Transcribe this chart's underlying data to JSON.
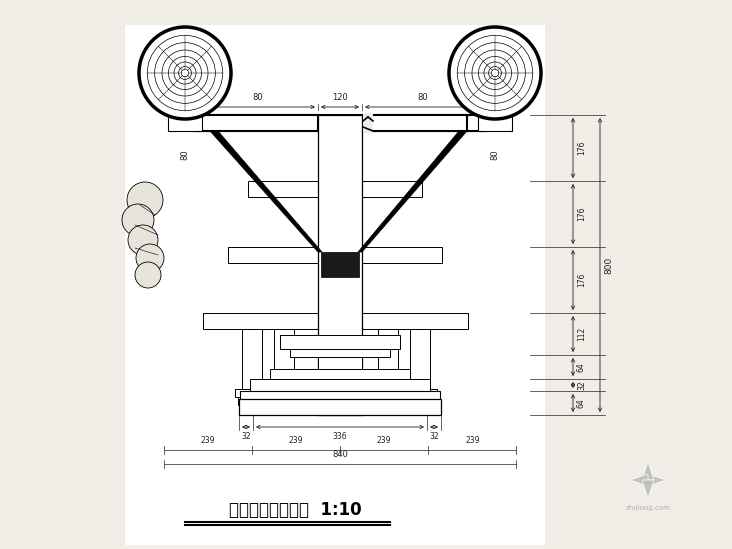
{
  "title": "五踩斗拱侧立面图  1:10",
  "bg_color": "#f0ede6",
  "line_color": "#000000",
  "fig_w": 7.32,
  "fig_h": 5.49,
  "dpi": 100
}
